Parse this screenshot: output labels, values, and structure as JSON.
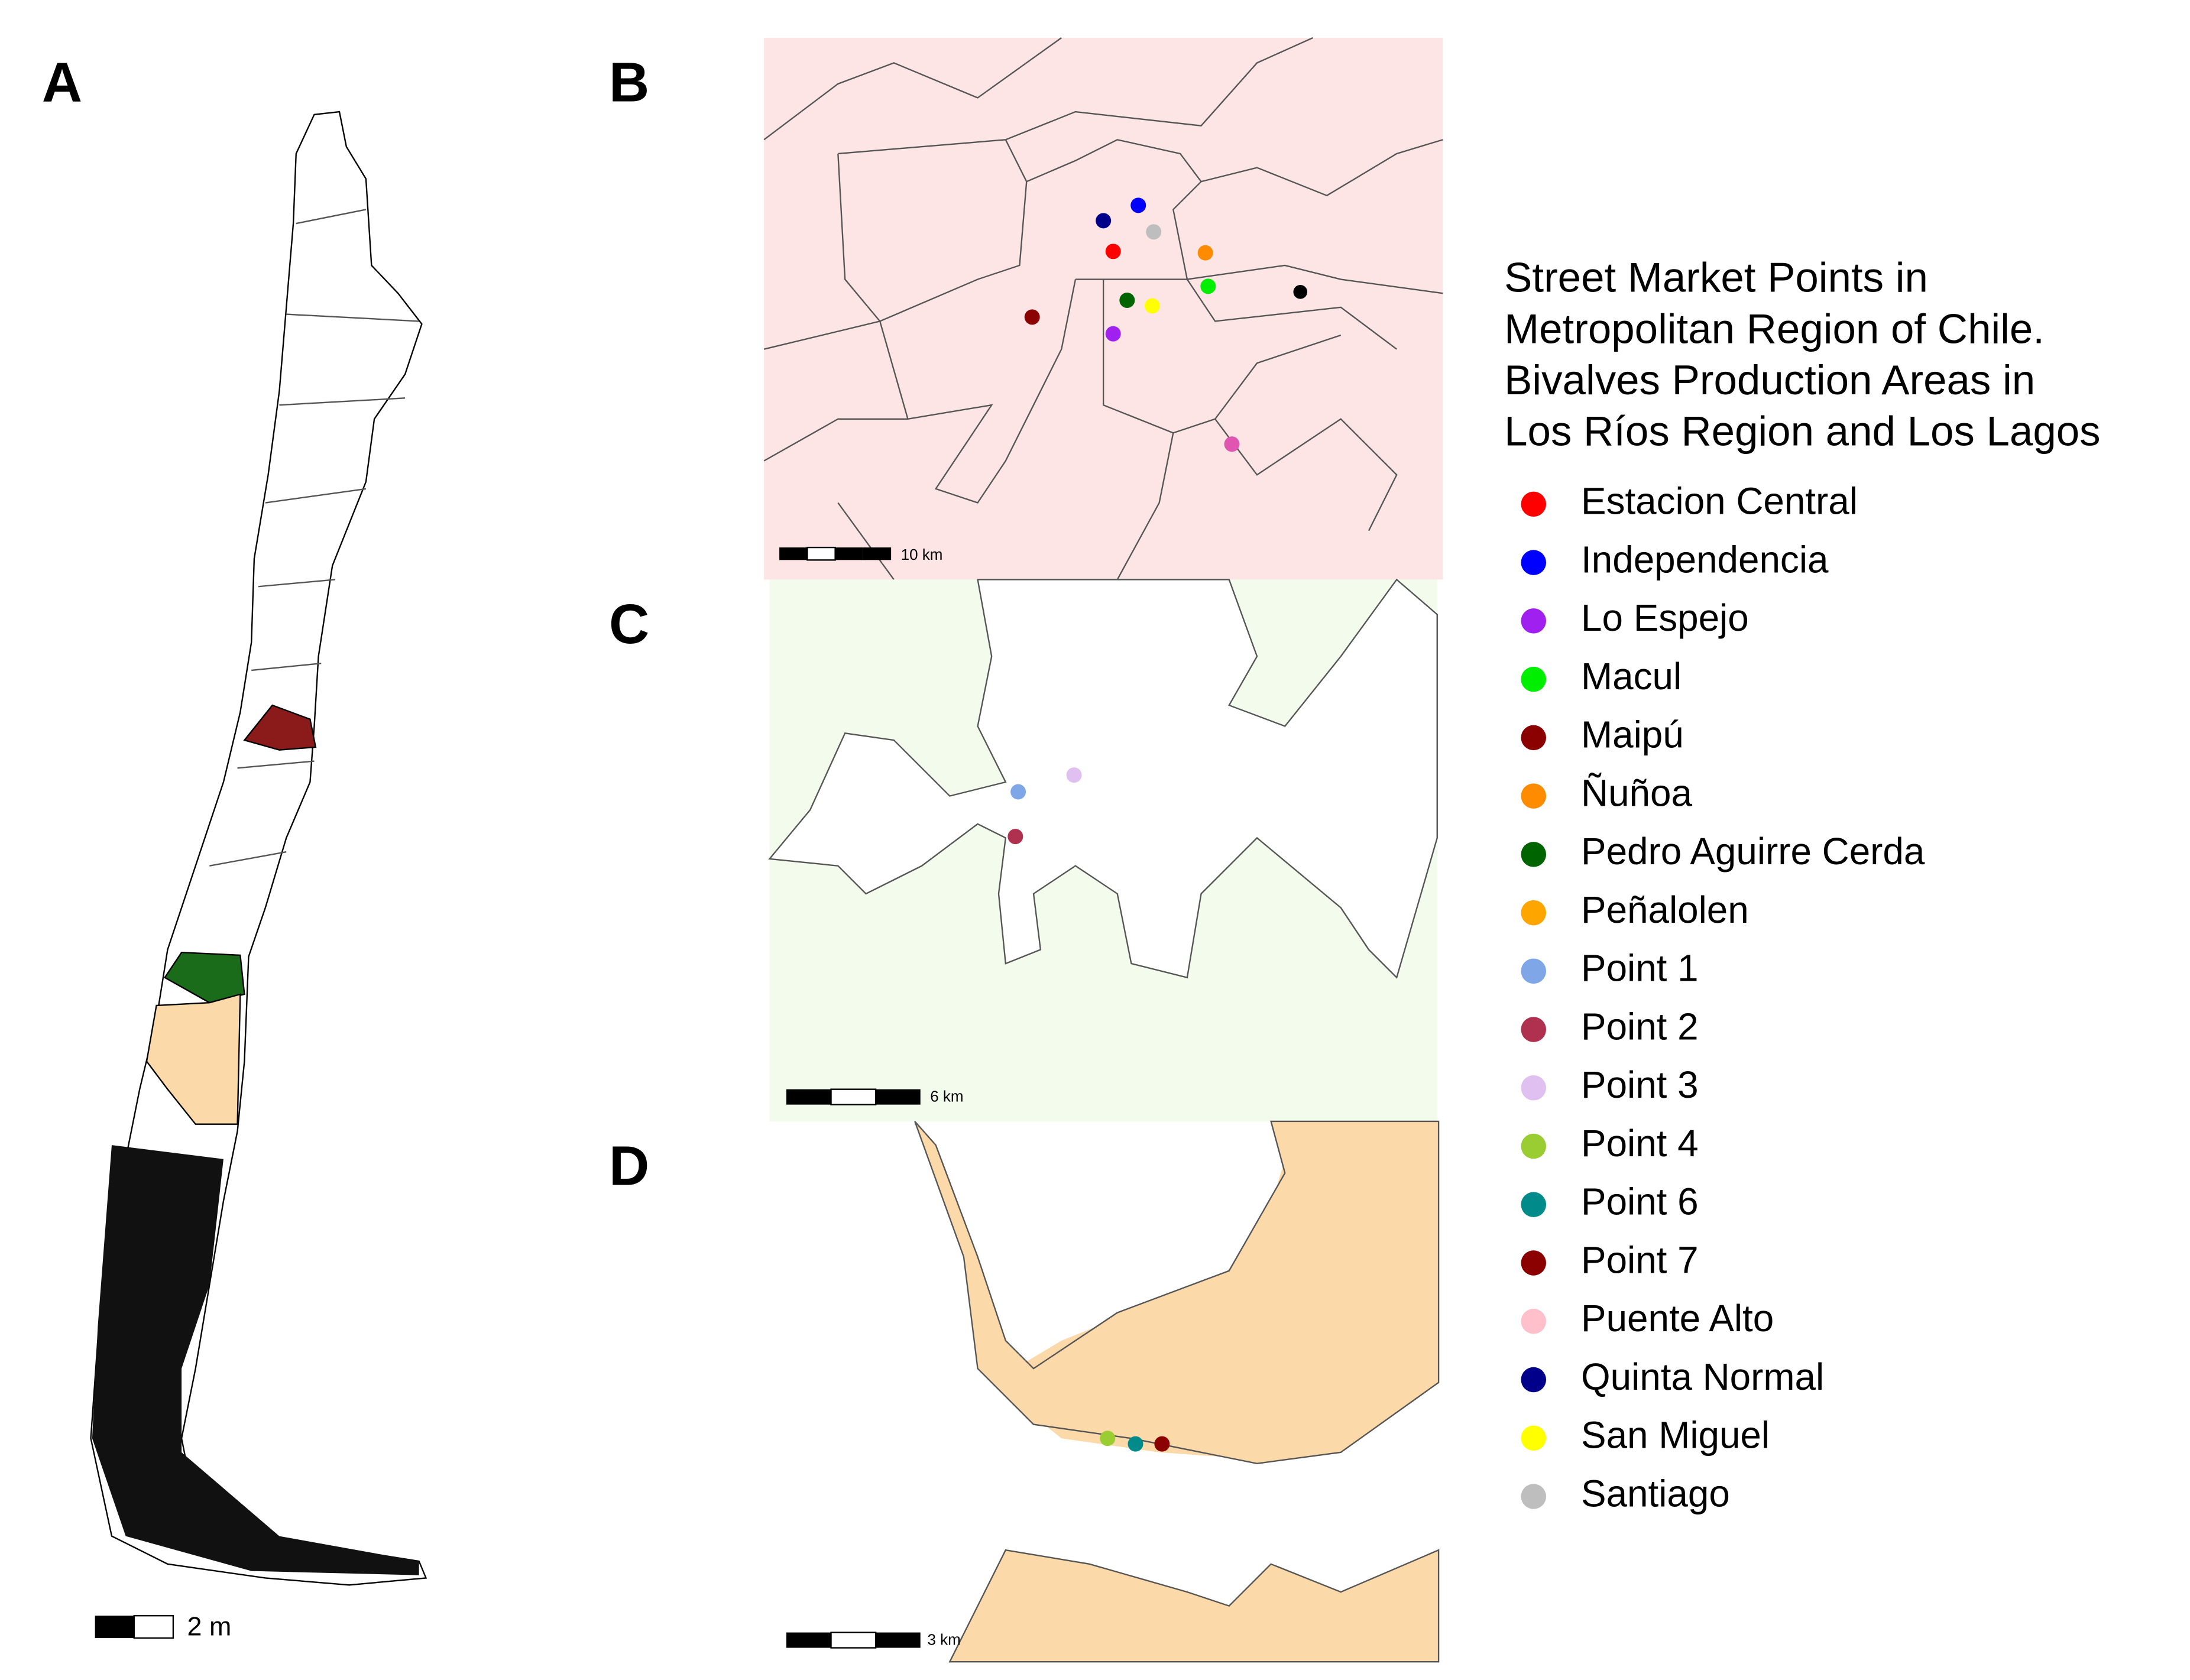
{
  "panels": [
    {
      "label": "A",
      "scale_label": "2 m"
    },
    {
      "label": "B",
      "scale_label": "10 km"
    },
    {
      "label": "C",
      "scale_label": "6 km"
    },
    {
      "label": "D",
      "scale_label": "3 km"
    }
  ],
  "legend": {
    "title": [
      "Street Market Points in",
      "Metropolitan Region of Chile.",
      "Bivalves Production Areas in",
      "Los Ríos Region and Los Lagos"
    ],
    "items": [
      {
        "name": "Estacion Central",
        "color": "#ff0000"
      },
      {
        "name": "Independencia",
        "color": "#0000ff"
      },
      {
        "name": "Lo Espejo",
        "color": "#a020f0"
      },
      {
        "name": "Macul",
        "color": "#00ee00"
      },
      {
        "name": "Maipú",
        "color": "#8b0000"
      },
      {
        "name": "Ñuñoa",
        "color": "#ff8c00"
      },
      {
        "name": "Pedro Aguirre Cerda",
        "color": "#006400"
      },
      {
        "name": "Peñalolen",
        "color": "#ffa500"
      },
      {
        "name": "Point 1",
        "color": "#7fa7e8"
      },
      {
        "name": "Point 2",
        "color": "#b03050"
      },
      {
        "name": "Point 3",
        "color": "#e0c0f0"
      },
      {
        "name": "Point 4",
        "color": "#9acd32"
      },
      {
        "name": "Point 6",
        "color": "#008b8b"
      },
      {
        "name": "Point 7",
        "color": "#8b0000"
      },
      {
        "name": "Puente Alto",
        "color": "#ffc0cb"
      },
      {
        "name": "Quinta Normal",
        "color": "#00008b"
      },
      {
        "name": "San Miguel",
        "color": "#ffff00"
      },
      {
        "name": "Santiago",
        "color": "#bebebe"
      }
    ]
  }
}
